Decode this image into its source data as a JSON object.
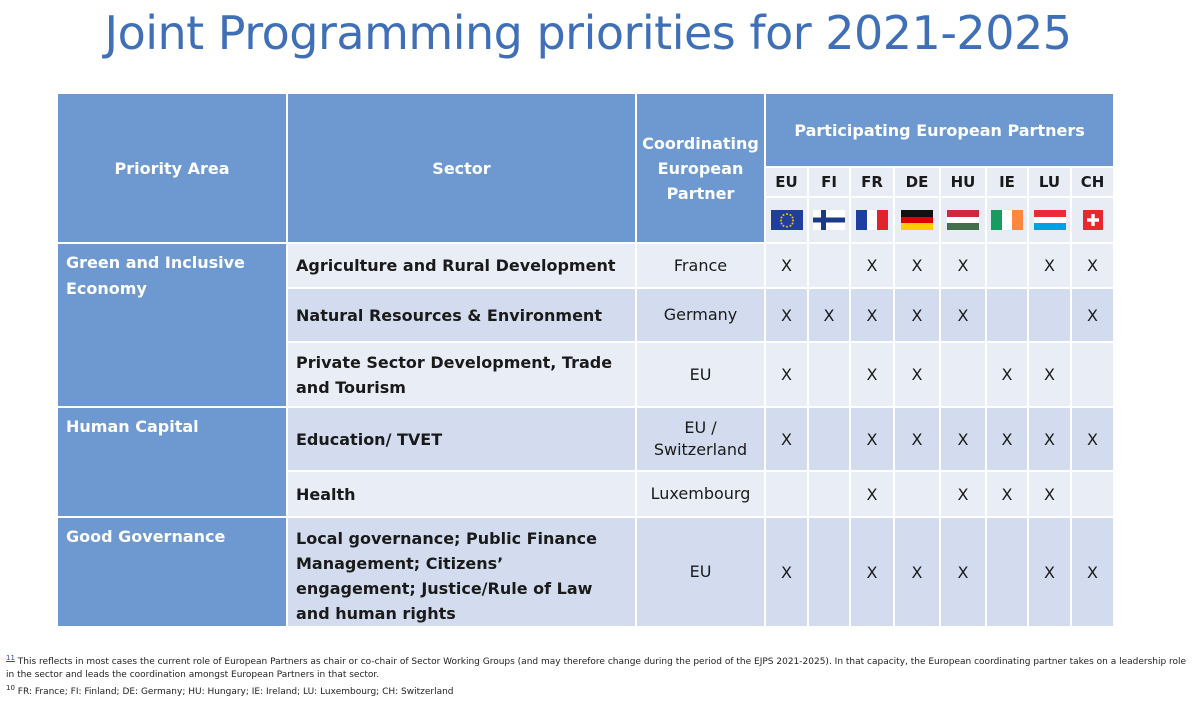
{
  "title": "Joint Programming priorities for 2021-2025",
  "colors": {
    "title": "#3f6fb6",
    "header_bg": "#6e99d0",
    "row_light": "#e9eef6",
    "row_dark": "#d2dcee"
  },
  "table": {
    "headers": {
      "priority_area": "Priority Area",
      "sector": "Sector",
      "coordinating": "Coordinating European Partner",
      "participating": "Participating European Partners"
    },
    "partners": [
      {
        "code": "EU",
        "flag": "eu-flag-icon"
      },
      {
        "code": "FI",
        "flag": "finland-flag-icon"
      },
      {
        "code": "FR",
        "flag": "france-flag-icon"
      },
      {
        "code": "DE",
        "flag": "germany-flag-icon"
      },
      {
        "code": "HU",
        "flag": "hungary-flag-icon"
      },
      {
        "code": "IE",
        "flag": "ireland-flag-icon"
      },
      {
        "code": "LU",
        "flag": "luxembourg-flag-icon"
      },
      {
        "code": "CH",
        "flag": "switzerland-flag-icon"
      }
    ],
    "areas": [
      {
        "name": "Green and Inclusive Economy"
      },
      {
        "name": "Human Capital"
      },
      {
        "name": "Good Governance"
      }
    ],
    "rows": [
      {
        "sector": "Agriculture and Rural Development",
        "coordinator": "France",
        "marks": [
          "X",
          "",
          "X",
          "X",
          "X",
          "",
          "X",
          "X"
        ]
      },
      {
        "sector": "Natural Resources  & Environment",
        "coordinator": "Germany",
        "marks": [
          "X",
          "X",
          "X",
          "X",
          "X",
          "",
          "",
          "X"
        ]
      },
      {
        "sector": "Private Sector Development, Trade and Tourism",
        "coordinator": "EU",
        "marks": [
          "X",
          "",
          "X",
          "X",
          "",
          "X",
          "X",
          ""
        ]
      },
      {
        "sector": "Education/ TVET",
        "coordinator": "EU / Switzerland",
        "marks": [
          "X",
          "",
          "X",
          "X",
          "X",
          "X",
          "X",
          "X"
        ]
      },
      {
        "sector": "Health",
        "coordinator": "Luxembourg",
        "marks": [
          "",
          "",
          "X",
          "",
          "X",
          "X",
          "X",
          ""
        ]
      },
      {
        "sector": "Local governance;  Public Finance Management; Citizens’ engagement; Justice/Rule of Law and human rights",
        "coordinator": "EU",
        "marks": [
          "X",
          "",
          "X",
          "X",
          "X",
          "",
          "X",
          "X"
        ]
      }
    ]
  },
  "footnotes": {
    "note1_mark": "11",
    "note1": "This reflects in most cases the current role of European Partners as chair or co-chair of Sector Working Groups (and may therefore change during the period of the EJPS 2021-2025). In that capacity, the European coordinating partner takes on a leadership role in the sector and leads the coordination amongst European Partners in that sector.",
    "note2_mark": "10",
    "note2": "FR: France; FI: Finland; DE: Germany; HU: Hungary; IE: Ireland; LU: Luxembourg; CH: Switzerland"
  }
}
